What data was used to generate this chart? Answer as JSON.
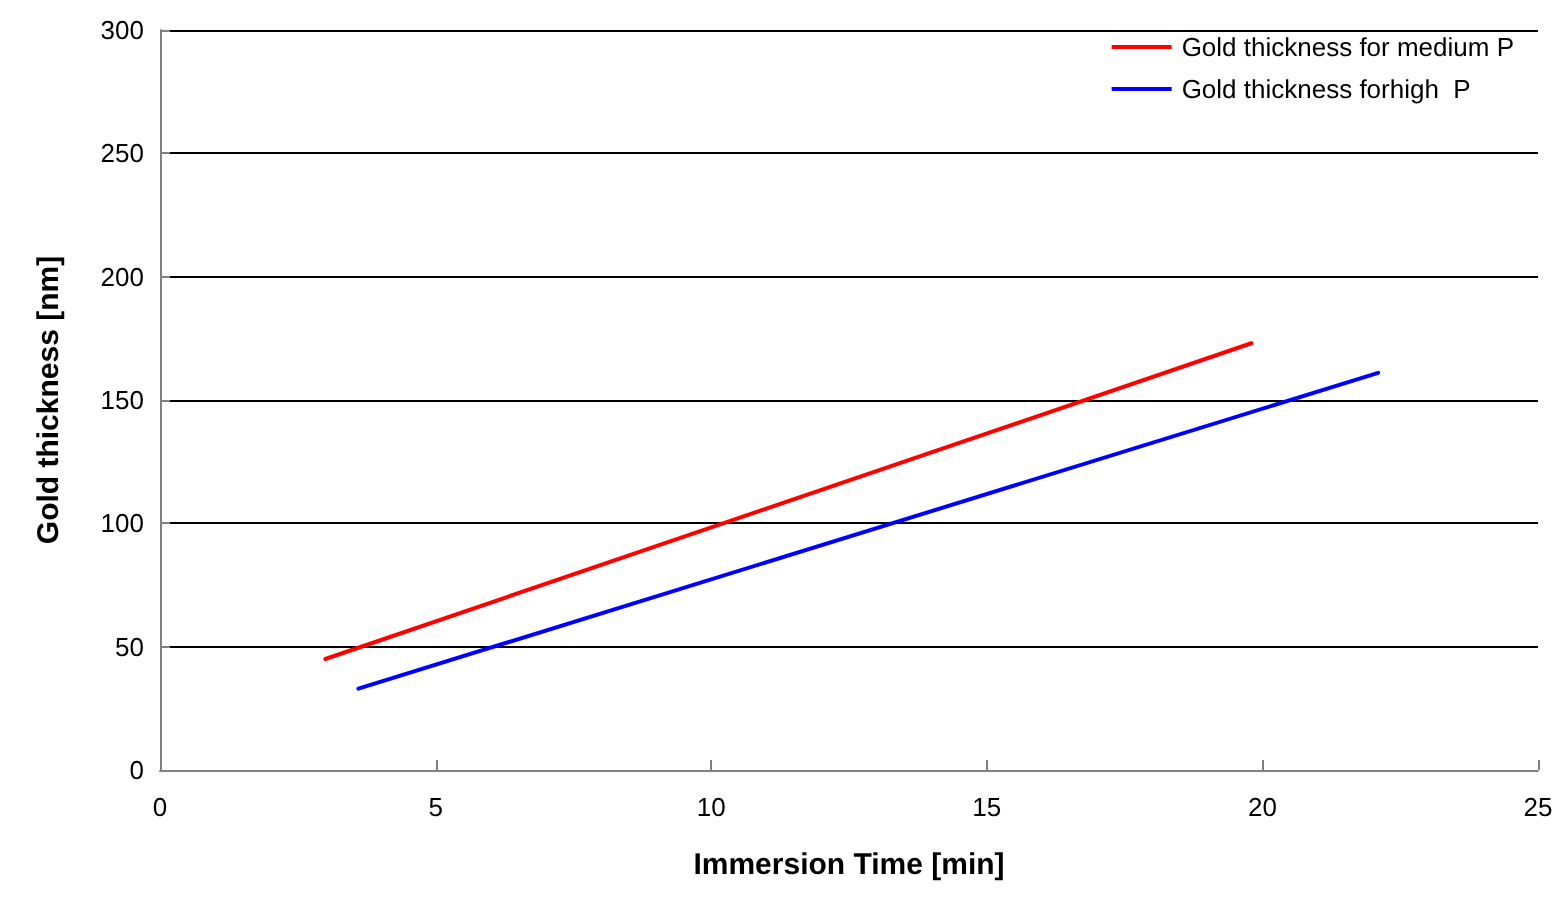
{
  "chart_data": {
    "type": "line",
    "xlabel": "Immersion Time [min]",
    "ylabel": "Gold thickness [nm]",
    "xlim": [
      0,
      25
    ],
    "xticks": [
      0,
      5,
      10,
      15,
      20,
      25
    ],
    "ylim": [
      0,
      300
    ],
    "yticks": [
      0,
      50,
      100,
      150,
      200,
      250,
      300
    ],
    "grid": "y",
    "legend": "top right",
    "marker": "none",
    "line_style": "solid",
    "series": [
      {
        "name": "Gold thickness for medium P",
        "color": "#ff0000",
        "x": [
          3,
          19.8
        ],
        "values": [
          45,
          173
        ]
      },
      {
        "name": "Gold thickness forhigh  P",
        "color": "#0000ff",
        "x": [
          3.6,
          22.1
        ],
        "values": [
          33,
          161
        ]
      }
    ]
  }
}
